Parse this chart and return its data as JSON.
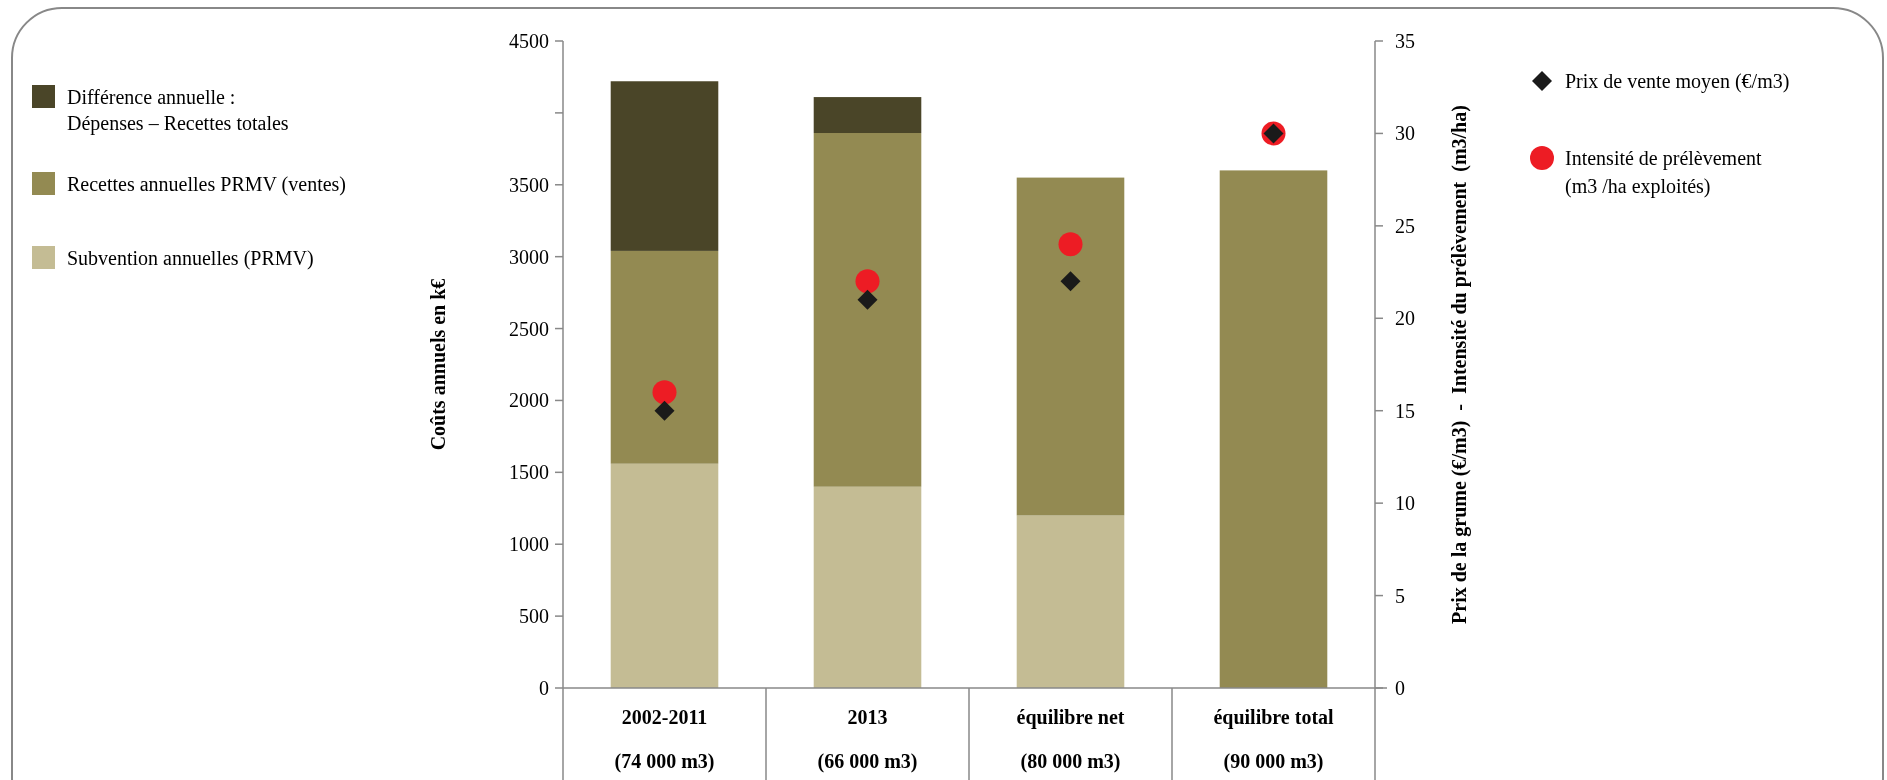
{
  "chart_data": {
    "type": "bar",
    "stacked": true,
    "ylabel": "Coûts annuels en k€",
    "y2label": "Prix de la grume (€/m3)  -  Intensité du prélèvement  (m3/ha)",
    "categories": [
      "2002-2011\n(74 000 m3)",
      "2013\n(66 000 m3)",
      "équilibre net\n(80 000 m3)",
      "équilibre total\n(90 000 m3)"
    ],
    "series": [
      {
        "name": "Subvention annuelles (PRMV)",
        "color": "#c4bc94",
        "values": [
          1560,
          1400,
          1200,
          null
        ]
      },
      {
        "name": "Recettes annuelles PRMV (ventes)",
        "color": "#938a52",
        "values": [
          1480,
          2460,
          2350,
          3600
        ]
      },
      {
        "name": "Différence annuelle :\nDépenses – Recettes totales",
        "color": "#4a4528",
        "values": [
          1180,
          250,
          null,
          null
        ]
      },
      {
        "name": "Prix de vente moyen (€/m3)",
        "type": "scatter",
        "axis": "y2",
        "marker": "diamond",
        "color": "#1a1a1a",
        "x": [
          "2002-2011\n(74 000 m3)",
          "2013\n(66 000 m3)",
          "équilibre net\n(80 000 m3)",
          "équilibre total\n(90 000 m3)"
        ],
        "values": [
          15,
          21,
          22,
          30
        ]
      },
      {
        "name": "Intensité de prélèvement\n(m3 /ha exploités)",
        "type": "scatter",
        "axis": "y2",
        "marker": "circle",
        "color": "#ed1c24",
        "x": [
          "2002-2011\n(74 000 m3)",
          "2013\n(66 000 m3)",
          "équilibre net\n(80 000 m3)",
          "équilibre total\n(90 000 m3)"
        ],
        "values": [
          16,
          22,
          24,
          30
        ]
      }
    ],
    "ylim": [
      0,
      4500
    ],
    "yticks": [
      0,
      500,
      1000,
      1500,
      2000,
      2500,
      3000,
      3500,
      {
        "value": 4000,
        "label": null
      },
      4500
    ],
    "y2lim": [
      0,
      35
    ],
    "y2ticks": [
      0,
      5,
      10,
      15,
      20,
      25,
      30,
      35
    ],
    "legend": "left"
  }
}
